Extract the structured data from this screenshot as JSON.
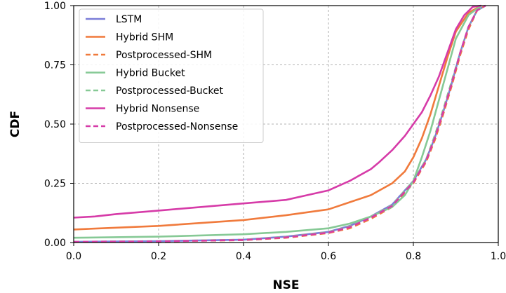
{
  "chart_data": {
    "type": "line",
    "xlabel": "NSE",
    "ylabel": "CDF",
    "xlim": [
      0.0,
      1.0
    ],
    "ylim": [
      0.0,
      1.0
    ],
    "xticks": [
      "0.0",
      "0.2",
      "0.4",
      "0.6",
      "0.8",
      "1.0"
    ],
    "yticks": [
      "0.00",
      "0.25",
      "0.50",
      "0.75",
      "1.00"
    ],
    "grid": true,
    "legend_position": "top-left",
    "series": [
      {
        "name": "LSTM",
        "color": "#7a7dd8",
        "dash": "solid",
        "x": [
          0.0,
          0.2,
          0.4,
          0.5,
          0.6,
          0.65,
          0.7,
          0.75,
          0.8,
          0.83,
          0.85,
          0.87,
          0.89,
          0.91,
          0.93,
          0.95,
          0.97
        ],
        "y": [
          0.003,
          0.006,
          0.012,
          0.025,
          0.045,
          0.07,
          0.11,
          0.16,
          0.26,
          0.35,
          0.44,
          0.55,
          0.67,
          0.8,
          0.91,
          0.98,
          1.0
        ]
      },
      {
        "name": "Hybrid SHM",
        "color": "#f07a3c",
        "dash": "solid",
        "x": [
          0.0,
          0.2,
          0.4,
          0.5,
          0.6,
          0.65,
          0.7,
          0.75,
          0.78,
          0.8,
          0.82,
          0.84,
          0.86,
          0.88,
          0.9,
          0.93,
          0.96
        ],
        "y": [
          0.055,
          0.07,
          0.095,
          0.115,
          0.14,
          0.17,
          0.2,
          0.25,
          0.3,
          0.36,
          0.44,
          0.54,
          0.66,
          0.78,
          0.89,
          0.97,
          1.0
        ]
      },
      {
        "name": "Postprocessed-SHM",
        "color": "#f07a3c",
        "dash": "dashed",
        "x": [
          0.0,
          0.2,
          0.4,
          0.5,
          0.6,
          0.65,
          0.7,
          0.75,
          0.8,
          0.83,
          0.85,
          0.87,
          0.89,
          0.91,
          0.93,
          0.95,
          0.97
        ],
        "y": [
          0.002,
          0.005,
          0.01,
          0.02,
          0.04,
          0.06,
          0.1,
          0.15,
          0.25,
          0.34,
          0.43,
          0.54,
          0.66,
          0.79,
          0.9,
          0.98,
          1.0
        ]
      },
      {
        "name": "Hybrid Bucket",
        "color": "#86c995",
        "dash": "solid",
        "x": [
          0.0,
          0.2,
          0.4,
          0.5,
          0.6,
          0.65,
          0.7,
          0.75,
          0.78,
          0.8,
          0.82,
          0.84,
          0.86,
          0.88,
          0.9,
          0.93,
          0.96
        ],
        "y": [
          0.02,
          0.025,
          0.035,
          0.045,
          0.06,
          0.08,
          0.11,
          0.15,
          0.2,
          0.26,
          0.36,
          0.47,
          0.6,
          0.73,
          0.86,
          0.96,
          1.0
        ]
      },
      {
        "name": "Postprocessed-Bucket",
        "color": "#86c995",
        "dash": "dashed",
        "x": [
          0.0,
          0.2,
          0.4,
          0.5,
          0.6,
          0.65,
          0.7,
          0.75,
          0.8,
          0.83,
          0.85,
          0.87,
          0.89,
          0.91,
          0.93,
          0.95,
          0.97
        ],
        "y": [
          0.003,
          0.006,
          0.012,
          0.024,
          0.044,
          0.068,
          0.108,
          0.158,
          0.26,
          0.35,
          0.45,
          0.56,
          0.68,
          0.8,
          0.91,
          0.98,
          1.0
        ]
      },
      {
        "name": "Hybrid Nonsense",
        "color": "#d63ba8",
        "dash": "solid",
        "x": [
          0.0,
          0.05,
          0.1,
          0.2,
          0.3,
          0.4,
          0.5,
          0.55,
          0.6,
          0.65,
          0.7,
          0.72,
          0.75,
          0.78,
          0.8,
          0.82,
          0.84,
          0.86,
          0.88,
          0.9,
          0.92,
          0.94,
          0.96
        ],
        "y": [
          0.105,
          0.11,
          0.12,
          0.135,
          0.15,
          0.165,
          0.18,
          0.2,
          0.22,
          0.26,
          0.31,
          0.34,
          0.39,
          0.45,
          0.5,
          0.55,
          0.62,
          0.7,
          0.8,
          0.9,
          0.96,
          0.995,
          1.0
        ]
      },
      {
        "name": "Postprocessed-Nonsense",
        "color": "#d63ba8",
        "dash": "dashed",
        "x": [
          0.0,
          0.2,
          0.4,
          0.5,
          0.6,
          0.65,
          0.7,
          0.75,
          0.8,
          0.83,
          0.85,
          0.87,
          0.89,
          0.91,
          0.93,
          0.95,
          0.97
        ],
        "y": [
          0.003,
          0.005,
          0.011,
          0.022,
          0.042,
          0.065,
          0.105,
          0.155,
          0.255,
          0.345,
          0.44,
          0.55,
          0.67,
          0.8,
          0.91,
          0.98,
          1.0
        ]
      }
    ]
  }
}
